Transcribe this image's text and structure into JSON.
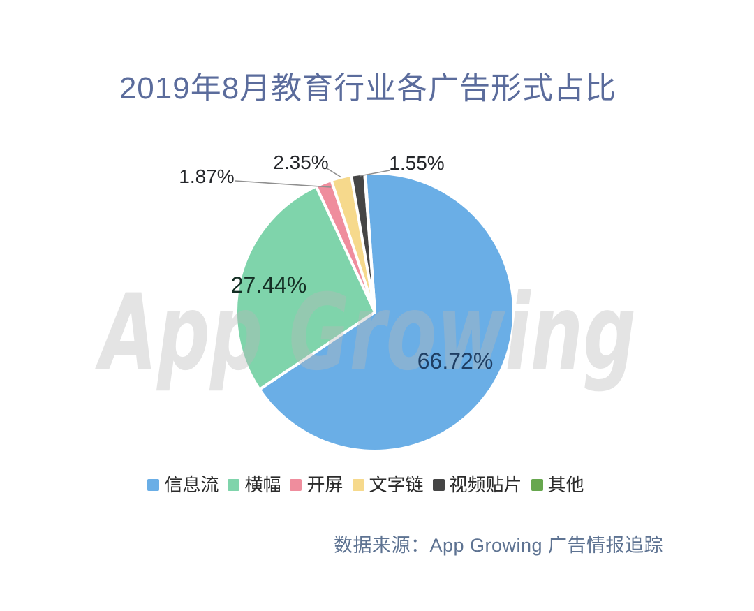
{
  "page": {
    "background_color": "#ffffff"
  },
  "header": {
    "title": "2019年8月教育行业各广告形式占比",
    "title_color": "#5b6c9c"
  },
  "watermark": {
    "text": "App Growing",
    "color": "rgba(185,185,185,0.38)"
  },
  "footer": {
    "source_text": "数据来源：App Growing 广告情报追踪",
    "color": "#5e7392"
  },
  "chart_data": {
    "type": "pie",
    "title": "2019年8月教育行业各广告形式占比",
    "unit": "%",
    "direction": "clockwise",
    "start_angle_offset_deg": -4,
    "legend_position": "bottom",
    "slice_border_color": "#ffffff",
    "leader_line_color": "#8f8f8f",
    "series": [
      {
        "name": "信息流",
        "value": 66.72,
        "label": "66.72%",
        "color": "#6aaee6",
        "label_color": "#1f3e63",
        "label_placement": "inside"
      },
      {
        "name": "横幅",
        "value": 27.44,
        "label": "27.44%",
        "color": "#7fd4ab",
        "label_color": "#142e24",
        "label_placement": "inside"
      },
      {
        "name": "开屏",
        "value": 1.87,
        "label": "1.87%",
        "color": "#ef8d9d",
        "label_color": "#25272b",
        "label_placement": "outside"
      },
      {
        "name": "文字链",
        "value": 2.35,
        "label": "2.35%",
        "color": "#f6d98c",
        "label_color": "#25272b",
        "label_placement": "outside"
      },
      {
        "name": "视频贴片",
        "value": 1.55,
        "label": "1.55%",
        "color": "#454545",
        "label_color": "#25272b",
        "label_placement": "outside"
      },
      {
        "name": "其他",
        "value": 0.07,
        "label": "",
        "color": "#67a74e",
        "label_placement": "none"
      }
    ]
  }
}
